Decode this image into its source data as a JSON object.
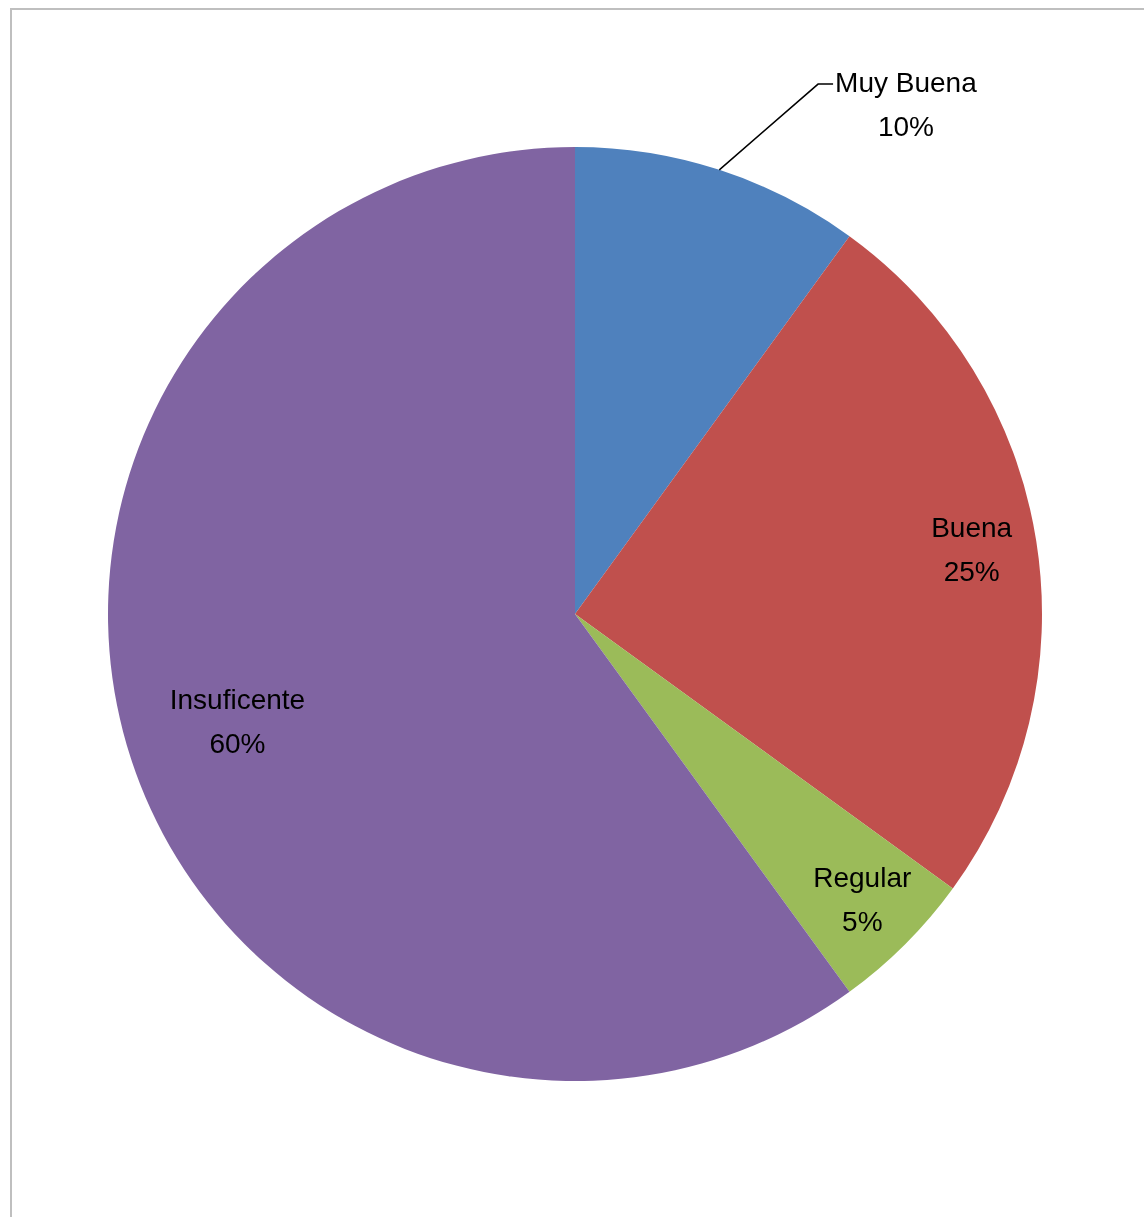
{
  "chart_data": {
    "type": "pie",
    "categories": [
      "Muy Buena",
      "Buena",
      "Regular",
      "Insuficente"
    ],
    "values": [
      10,
      25,
      5,
      60
    ],
    "colors": [
      "#4f81bd",
      "#c0504d",
      "#9bbb59",
      "#8064a2"
    ],
    "value_labels": [
      "10%",
      "25%",
      "5%",
      "60%"
    ],
    "legend": false
  }
}
